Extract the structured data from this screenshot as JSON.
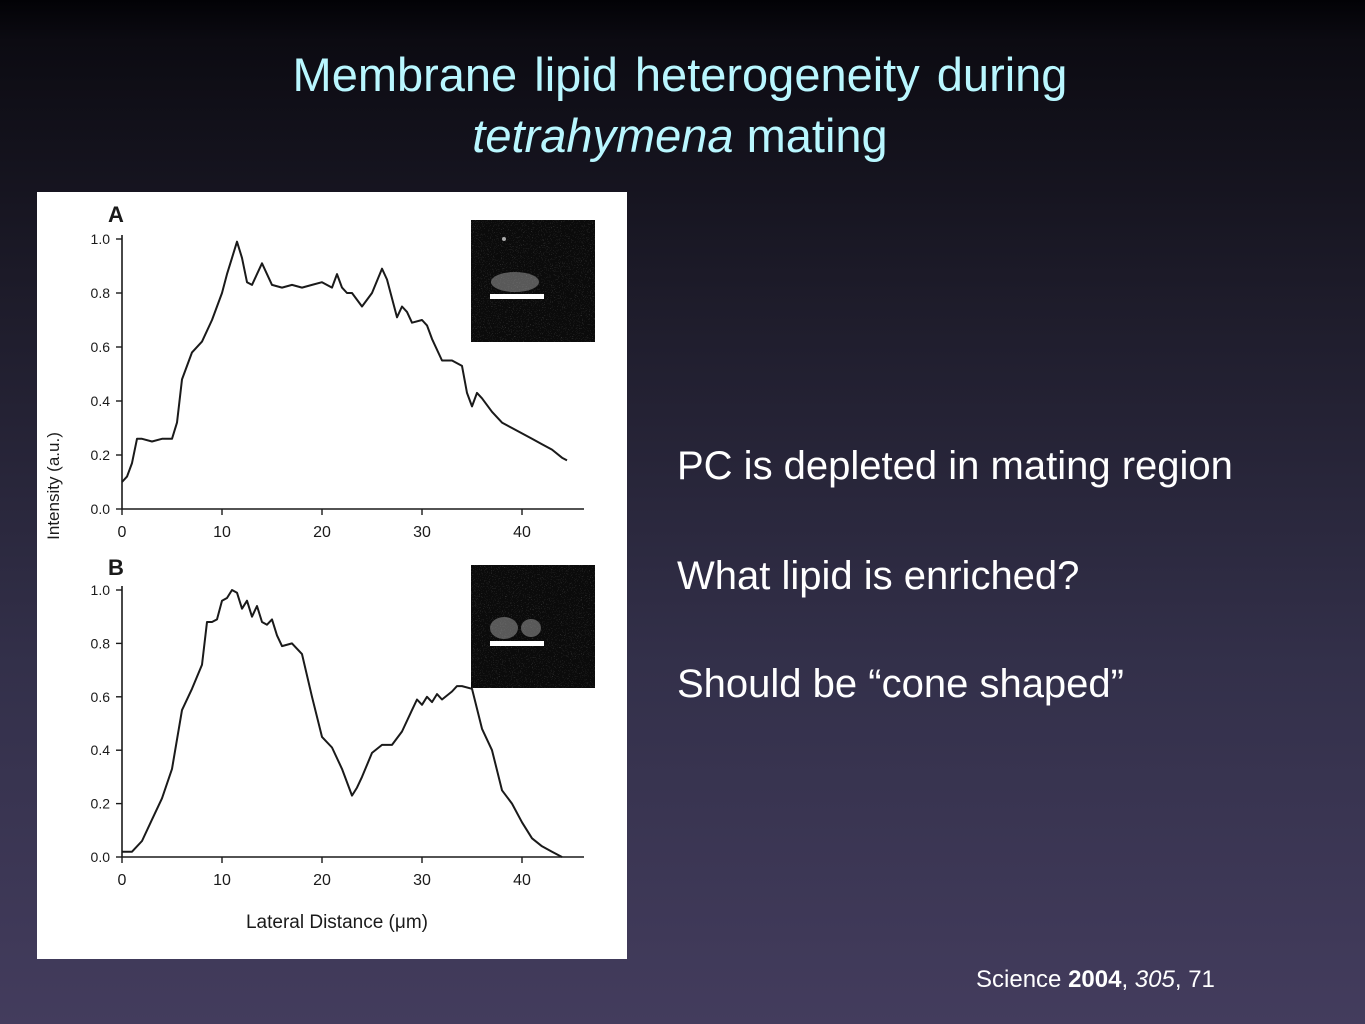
{
  "slide": {
    "title_line1": "Membrane lipid heterogeneity during",
    "title_italic": "tetrahymena",
    "title_rest": " mating",
    "bullets": [
      "PC is depleted in mating region",
      "What lipid is enriched?",
      "Should be “cone shaped”"
    ],
    "citation": {
      "journal": "Science ",
      "year": "2004",
      "sep1": ", ",
      "volume": "305",
      "sep2": ", ",
      "page": "71"
    }
  },
  "colors": {
    "title": "#b9f7ff",
    "text": "#ffffff",
    "figure_background": "#ffffff",
    "plot_line": "#1a1a1a"
  },
  "chart_data": [
    {
      "type": "line",
      "panel_label": "A",
      "xlabel": "",
      "ylabel": "Intensity (a.u.)",
      "xlim": [
        0,
        45
      ],
      "ylim": [
        0,
        1.0
      ],
      "x_ticks": [
        "0",
        "10",
        "20",
        "30",
        "40"
      ],
      "y_ticks": [
        "0.0",
        "0.2",
        "0.4",
        "0.6",
        "0.8",
        "1.0"
      ],
      "grid": false,
      "inset": "fluorescence micrograph",
      "series": [
        {
          "x": [
            0,
            0.5,
            1,
            1.5,
            2,
            3,
            4,
            5,
            5.5,
            6,
            7,
            8,
            9,
            10,
            10.5,
            11,
            11.5,
            12,
            12.5,
            13,
            13.5,
            14,
            15,
            16,
            17,
            18,
            19,
            20,
            21,
            21.5,
            22,
            22.5,
            23,
            24,
            25,
            26,
            26.5,
            27,
            27.5,
            28,
            28.5,
            29,
            30,
            30.5,
            31,
            32,
            33,
            34,
            34.5,
            35,
            35.5,
            36,
            37,
            38,
            39,
            40,
            41,
            42,
            43,
            44,
            44.5
          ],
          "y": [
            0.1,
            0.12,
            0.17,
            0.26,
            0.26,
            0.25,
            0.26,
            0.26,
            0.32,
            0.48,
            0.58,
            0.62,
            0.7,
            0.8,
            0.87,
            0.93,
            0.99,
            0.93,
            0.84,
            0.83,
            0.87,
            0.91,
            0.83,
            0.82,
            0.83,
            0.82,
            0.83,
            0.84,
            0.82,
            0.87,
            0.82,
            0.8,
            0.8,
            0.75,
            0.8,
            0.89,
            0.85,
            0.78,
            0.71,
            0.75,
            0.73,
            0.69,
            0.7,
            0.68,
            0.63,
            0.55,
            0.55,
            0.53,
            0.43,
            0.38,
            0.43,
            0.41,
            0.36,
            0.32,
            0.3,
            0.28,
            0.26,
            0.24,
            0.22,
            0.19,
            0.18
          ]
        }
      ]
    },
    {
      "type": "line",
      "panel_label": "B",
      "xlabel": "Lateral Distance (μm)",
      "ylabel": "Intensity (a.u.)",
      "xlim": [
        0,
        45
      ],
      "ylim": [
        0,
        1.0
      ],
      "x_ticks": [
        "0",
        "10",
        "20",
        "30",
        "40"
      ],
      "y_ticks": [
        "0.0",
        "0.2",
        "0.4",
        "0.6",
        "0.8",
        "1.0"
      ],
      "grid": false,
      "inset": "fluorescence micrograph",
      "series": [
        {
          "x": [
            0,
            1,
            2,
            3,
            4,
            5,
            6,
            7,
            8,
            8.5,
            9,
            9.5,
            10,
            10.5,
            11,
            11.5,
            12,
            12.5,
            13,
            13.5,
            14,
            14.5,
            15,
            15.5,
            16,
            17,
            18,
            19,
            20,
            21,
            22,
            23,
            23.5,
            24,
            25,
            26,
            27,
            28,
            29,
            29.5,
            30,
            30.5,
            31,
            31.5,
            32,
            33,
            33.5,
            34,
            35,
            36,
            37,
            38,
            39,
            40,
            41,
            42,
            43,
            44
          ],
          "y": [
            0.02,
            0.02,
            0.06,
            0.14,
            0.22,
            0.33,
            0.55,
            0.63,
            0.72,
            0.88,
            0.88,
            0.89,
            0.96,
            0.97,
            1.0,
            0.99,
            0.93,
            0.96,
            0.9,
            0.94,
            0.88,
            0.87,
            0.89,
            0.83,
            0.79,
            0.8,
            0.76,
            0.6,
            0.45,
            0.41,
            0.33,
            0.23,
            0.26,
            0.3,
            0.39,
            0.42,
            0.42,
            0.47,
            0.55,
            0.59,
            0.57,
            0.6,
            0.58,
            0.61,
            0.59,
            0.62,
            0.64,
            0.64,
            0.63,
            0.48,
            0.4,
            0.25,
            0.2,
            0.13,
            0.07,
            0.04,
            0.02,
            0.0
          ]
        }
      ]
    }
  ]
}
